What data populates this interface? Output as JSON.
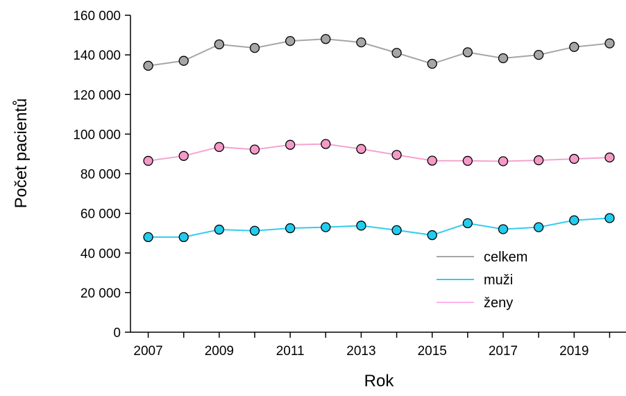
{
  "chart_data": {
    "type": "line",
    "title": "",
    "xlabel": "Rok",
    "ylabel": "Počet pacientů",
    "x": [
      2007,
      2008,
      2009,
      2010,
      2011,
      2012,
      2013,
      2014,
      2015,
      2016,
      2017,
      2018,
      2019,
      2020
    ],
    "x_tick_labels": [
      "2007",
      "2009",
      "2011",
      "2013",
      "2015",
      "2017",
      "2019"
    ],
    "xlim": [
      2006.5,
      2020.5
    ],
    "ylim": [
      0,
      160000
    ],
    "y_tick_labels": [
      "0",
      "20 000",
      "40 000",
      "60 000",
      "80 000",
      "100 000",
      "120 000",
      "140 000",
      "160 000"
    ],
    "grid": false,
    "legend_position": "bottom-right",
    "series": [
      {
        "name": "celkem",
        "line_color": "#a6a6a6",
        "marker_color": "#a6a6a6",
        "values": [
          134500,
          137000,
          145300,
          143500,
          147000,
          148000,
          146300,
          141000,
          135500,
          141300,
          138300,
          140000,
          144000,
          145800
        ]
      },
      {
        "name": "muži",
        "line_color": "#33ccee",
        "marker_color": "#22ccee",
        "values": [
          48000,
          48000,
          51800,
          51200,
          52500,
          53000,
          53800,
          51500,
          49000,
          55000,
          52000,
          53000,
          56500,
          57600
        ]
      },
      {
        "name": "ženy",
        "line_color": "#f5a3d0",
        "marker_color": "#f59ac8",
        "legend_color": "#ffb3ee",
        "values": [
          86500,
          89000,
          93500,
          92200,
          94600,
          95000,
          92500,
          89500,
          86600,
          86500,
          86300,
          86800,
          87500,
          88200
        ]
      }
    ]
  }
}
